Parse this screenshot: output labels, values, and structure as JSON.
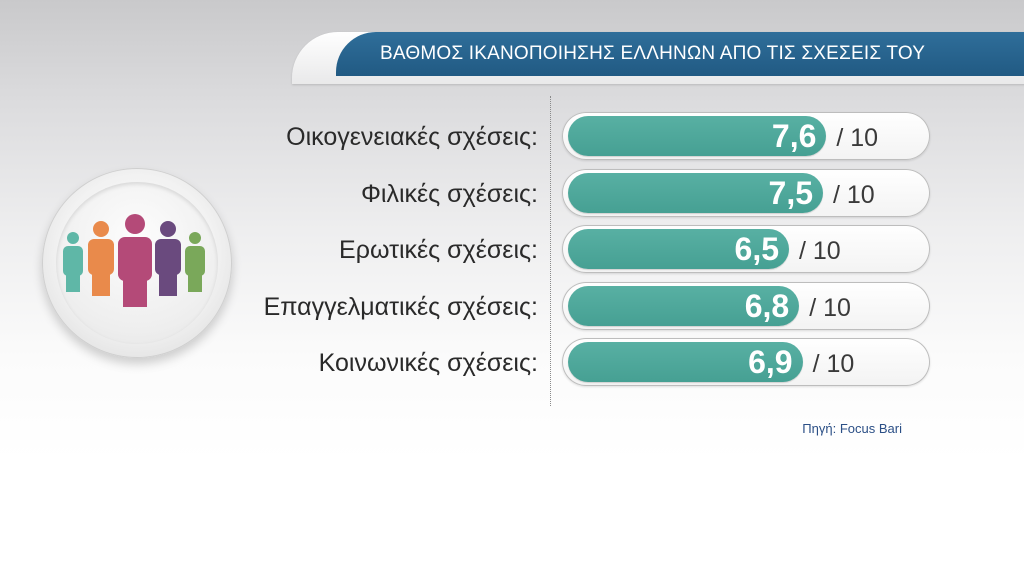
{
  "title": "ΒΑΘΜΟΣ ΙΚΑΝΟΠΟΙΗΣΗΣ ΕΛΛΗΝΩΝ ΑΠΟ ΤΙΣ ΣΧΕΣΕΙΣ ΤΟΥ",
  "source": "Πηγή: Focus Bari",
  "icon": "people-group-icon",
  "colors": {
    "banner": "#215a83",
    "bar": "#4aa497",
    "people": [
      "#5fb7a7",
      "#e98a4b",
      "#b44a78",
      "#6a4a7e",
      "#7aa85a"
    ]
  },
  "chart_data": {
    "type": "bar",
    "orientation": "horizontal",
    "title": "ΒΑΘΜΟΣ ΙΚΑΝΟΠΟΙΗΣΗΣ ΕΛΛΗΝΩΝ ΑΠΟ ΤΙΣ ΣΧΕΣΕΙΣ ΤΟΥ",
    "categories": [
      "Οικογενειακές σχέσεις:",
      "Φιλικές σχέσεις:",
      "Ερωτικές σχέσεις:",
      "Επαγγελματικές σχέσεις:",
      "Κοινωνικές σχέσεις:"
    ],
    "values": [
      7.6,
      7.5,
      6.5,
      6.8,
      6.9
    ],
    "value_labels": [
      "7,6",
      "7,5",
      "6,5",
      "6,8",
      "6,9"
    ],
    "max_label": "/ 10",
    "xlim": [
      0,
      10
    ]
  }
}
